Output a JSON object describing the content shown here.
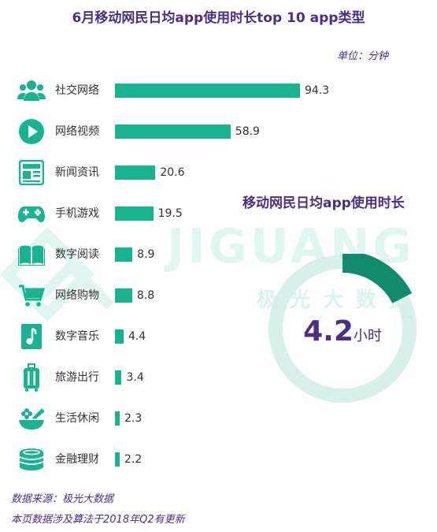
{
  "title": "6月移动网民日均app使用时长top 10 app类型",
  "unit_label": "单位：分钟",
  "watermark": {
    "brand": "JIGUANG",
    "brand_cn": "极光大数据"
  },
  "colors": {
    "accent": "#17b48f",
    "ring_light": "#d7f1ea",
    "ring_dark": "#128a6c",
    "text_purple": "#4a2f85"
  },
  "chart_data": {
    "type": "bar",
    "title": "6月移动网民日均app使用时长top 10 app类型",
    "ylabel": "单位：分钟",
    "categories": [
      "社交网络",
      "网络视频",
      "新闻资讯",
      "手机游戏",
      "数字阅读",
      "网络购物",
      "数字音乐",
      "旅游出行",
      "生活休闲",
      "金融理财"
    ],
    "values": [
      94.3,
      58.9,
      20.6,
      19.5,
      8.9,
      8.8,
      4.4,
      3.4,
      2.3,
      2.2
    ],
    "value_labels": [
      "94.3",
      "58.9",
      "20.6",
      "19.5",
      "8.9",
      "8.8",
      "4.4",
      "3.4",
      "2.3",
      "2.2"
    ],
    "icons": [
      "people-icon",
      "play-icon",
      "news-icon",
      "gamepad-icon",
      "book-icon",
      "cart-icon",
      "music-icon",
      "luggage-icon",
      "leisure-icon",
      "coins-icon"
    ],
    "xlim": [
      0,
      100
    ]
  },
  "daily_usage": {
    "title": "移动网民日均app使用时长",
    "value": "4.2",
    "unit": "小时",
    "hours": 4.2,
    "fraction_of_day": 0.175
  },
  "footer": {
    "source": "数据来源：极光大数据",
    "note": "本页数据涉及算法于2018年Q2有更新"
  }
}
